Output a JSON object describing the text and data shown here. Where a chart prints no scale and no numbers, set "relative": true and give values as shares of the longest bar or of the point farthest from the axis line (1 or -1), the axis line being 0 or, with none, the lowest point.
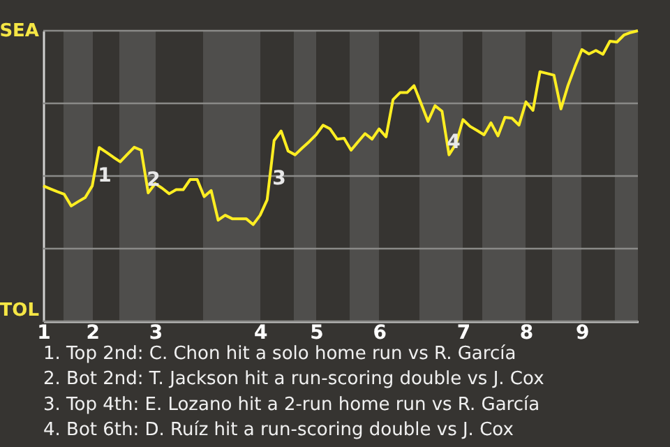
{
  "chart_data": {
    "type": "line",
    "relative": true,
    "categories": [
      "1",
      null,
      null,
      null,
      null,
      null,
      null,
      "2",
      null,
      null,
      null,
      null,
      null,
      null,
      null,
      null,
      "3",
      null,
      null,
      null,
      null,
      null,
      null,
      null,
      null,
      null,
      null,
      null,
      null,
      null,
      null,
      "4",
      null,
      null,
      null,
      null,
      null,
      null,
      null,
      "5",
      null,
      null,
      null,
      null,
      null,
      null,
      null,
      null,
      "6",
      null,
      null,
      null,
      null,
      null,
      null,
      null,
      null,
      null,
      null,
      null,
      "7",
      null,
      null,
      null,
      null,
      null,
      null,
      null,
      null,
      "8",
      null,
      null,
      null,
      null,
      null,
      null,
      null,
      "9",
      null,
      null,
      null,
      null,
      null,
      null,
      null,
      null
    ],
    "series": [
      {
        "color": "#ffee22",
        "values": [
          0.466,
          0.456,
          0.446,
          0.437,
          0.397,
          0.412,
          0.426,
          0.466,
          0.598,
          0.582,
          0.565,
          0.549,
          0.574,
          0.599,
          0.589,
          0.442,
          0.474,
          0.458,
          0.439,
          0.453,
          0.453,
          0.488,
          0.488,
          0.429,
          0.45,
          0.348,
          0.365,
          0.353,
          0.353,
          0.353,
          0.333,
          0.365,
          0.418,
          0.622,
          0.655,
          0.586,
          0.573,
          0.596,
          0.618,
          0.642,
          0.675,
          0.662,
          0.627,
          0.63,
          0.589,
          0.618,
          0.646,
          0.627,
          0.662,
          0.635,
          0.763,
          0.787,
          0.787,
          0.811,
          0.75,
          0.688,
          0.742,
          0.723,
          0.573,
          0.611,
          0.694,
          0.671,
          0.657,
          0.642,
          0.683,
          0.638,
          0.702,
          0.699,
          0.675,
          0.755,
          0.726,
          0.859,
          0.853,
          0.847,
          0.731,
          0.811,
          0.876,
          0.935,
          0.92,
          0.932,
          0.919,
          0.964,
          0.961,
          0.985,
          0.994,
          1.0
        ]
      }
    ],
    "grid": "y",
    "annotations": [
      "SEA",
      "TOL",
      "1",
      "2",
      "3",
      "4",
      "1. Top 2nd: C. Chon hit a solo home run vs R. García",
      "2. Bot 2nd: T. Jackson hit a run-scoring double vs J. Cox",
      "3. Top 4th: E. Lozano hit a 2-run home run vs R. García",
      "4. Bot 6th: D. Ruíz hit a run-scoring double vs J. Cox"
    ]
  }
}
